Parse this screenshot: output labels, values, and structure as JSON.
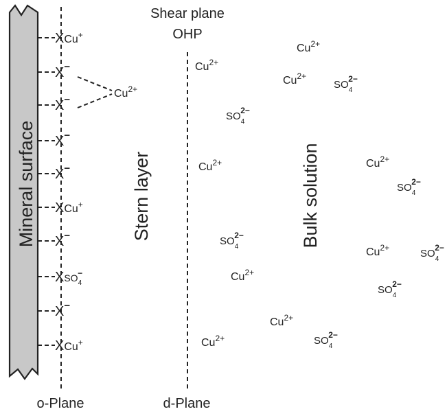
{
  "colors": {
    "surface_fill": "#c8c8c8",
    "stroke": "#222222",
    "text": "#222222"
  },
  "labels": {
    "shear_plane": "Shear plane",
    "ohp": "OHP",
    "mineral_surface": "Mineral surface",
    "stern_layer": "Stern layer",
    "bulk_solution": "Bulk solution",
    "o_plane": "o-Plane",
    "d_plane": "d-Plane"
  },
  "surface_sites": [
    {
      "site": "X",
      "charge": "",
      "ion": "Cu",
      "ion_charge": "+"
    },
    {
      "site": "X",
      "charge": "−",
      "ion": "",
      "ion_charge": ""
    },
    {
      "site": "X",
      "charge": "−",
      "ion": "",
      "ion_charge": ""
    },
    {
      "site": "X",
      "charge": "−",
      "ion": "",
      "ion_charge": ""
    },
    {
      "site": "X",
      "charge": "−",
      "ion": "",
      "ion_charge": ""
    },
    {
      "site": "X",
      "charge": "",
      "ion": "Cu",
      "ion_charge": "+"
    },
    {
      "site": "X",
      "charge": "−",
      "ion": "",
      "ion_charge": ""
    },
    {
      "site": "X",
      "charge": "",
      "ion": "SO4",
      "ion_charge": "−"
    },
    {
      "site": "X",
      "charge": "−",
      "ion": "",
      "ion_charge": ""
    },
    {
      "site": "X",
      "charge": "",
      "ion": "Cu",
      "ion_charge": "+"
    }
  ],
  "bridged_ion": {
    "ion": "Cu",
    "charge": "2+"
  },
  "solution_ions": [
    {
      "ion": "Cu",
      "charge": "2+"
    },
    {
      "ion": "SO4",
      "charge": "2−"
    },
    {
      "ion": "Cu",
      "charge": "2+"
    },
    {
      "ion": "SO4",
      "charge": "2−"
    },
    {
      "ion": "Cu",
      "charge": "2+"
    },
    {
      "ion": "Cu",
      "charge": "2+"
    },
    {
      "ion": "Cu",
      "charge": "2+"
    },
    {
      "ion": "SO4",
      "charge": "2−"
    },
    {
      "ion": "Cu",
      "charge": "2+"
    },
    {
      "ion": "SO4",
      "charge": "2−"
    },
    {
      "ion": "Cu",
      "charge": "2+"
    },
    {
      "ion": "SO4",
      "charge": "2−"
    },
    {
      "ion": "SO4",
      "charge": "2−"
    },
    {
      "ion": "Cu",
      "charge": "2+"
    },
    {
      "ion": "SO4",
      "charge": "2−"
    }
  ]
}
